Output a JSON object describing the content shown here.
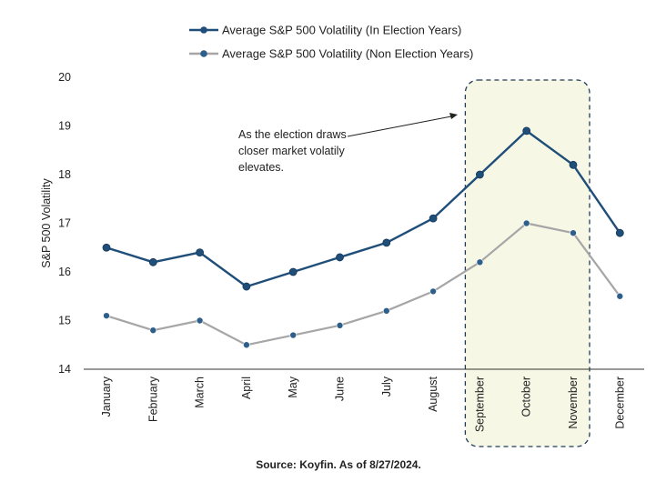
{
  "chart_data": {
    "type": "line",
    "categories": [
      "January",
      "February",
      "March",
      "April",
      "May",
      "June",
      "July",
      "August",
      "September",
      "October",
      "November",
      "December"
    ],
    "series": [
      {
        "name": "Average S&P 500 Volatility (In Election Years)",
        "color": "#1f4e79",
        "values": [
          16.5,
          16.2,
          16.4,
          15.7,
          16.0,
          16.3,
          16.6,
          17.1,
          18.0,
          18.9,
          18.2,
          16.8
        ]
      },
      {
        "name": "Average S&P 500 Volatility (Non Election Years)",
        "color": "#a6a6a6",
        "marker_color": "#2e5f8a",
        "values": [
          15.1,
          14.8,
          15.0,
          14.5,
          14.7,
          14.9,
          15.2,
          15.6,
          16.2,
          17.0,
          16.8,
          15.5
        ]
      }
    ],
    "ylabel": "S&P 500 Volatility",
    "ylim": [
      14,
      20
    ],
    "yticks": [
      14,
      15,
      16,
      17,
      18,
      19,
      20
    ],
    "legend_position": "top-center",
    "highlight": {
      "from": "September",
      "to": "November",
      "fill": "#f7f7e6",
      "border": "#1f3b57"
    },
    "annotation": {
      "lines": [
        "As the election draws",
        "closer market volatily",
        "elevates."
      ]
    },
    "source": "Source: Koyfin. As of 8/27/2024."
  }
}
